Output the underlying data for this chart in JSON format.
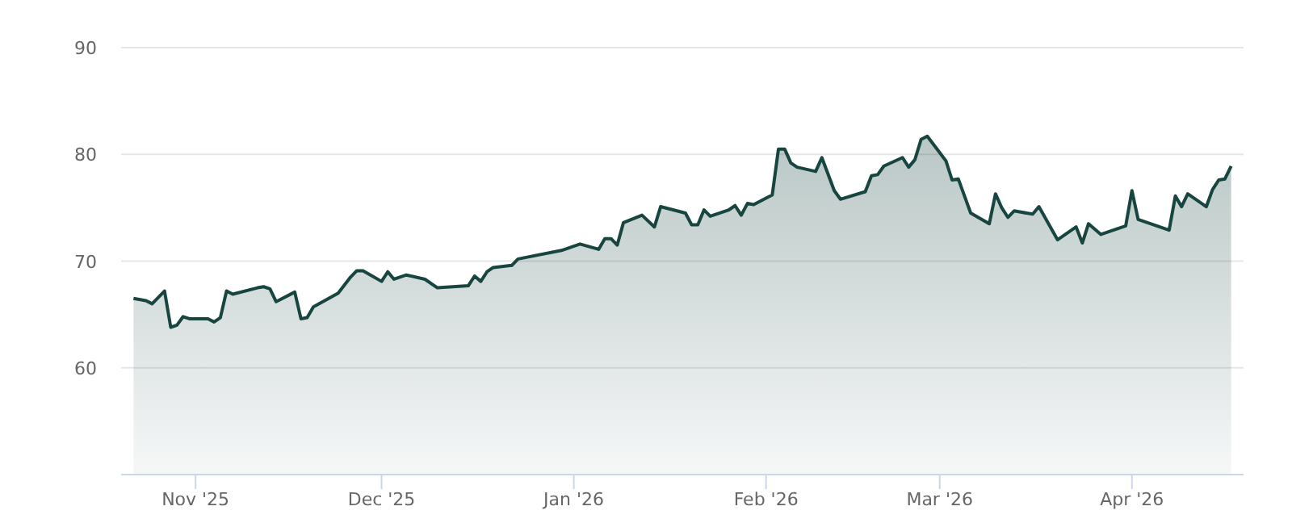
{
  "chart_data": {
    "type": "area",
    "ylim": [
      50,
      90
    ],
    "yticks": [
      60,
      70,
      80,
      90
    ],
    "grid": "y",
    "xlim": [
      "2025-10-20",
      "2026-04-19"
    ],
    "xticks": [
      {
        "value": "2025-11-01",
        "label": "Nov '25"
      },
      {
        "value": "2025-12-01",
        "label": "Dec '25"
      },
      {
        "value": "2026-01-01",
        "label": "Jan '26"
      },
      {
        "value": "2026-02-01",
        "label": "Feb '26"
      },
      {
        "value": "2026-03-01",
        "label": "Mar '26"
      },
      {
        "value": "2026-04-01",
        "label": "Apr '26"
      }
    ],
    "x": [
      "2025-10-22",
      "2025-10-24",
      "2025-10-25",
      "2025-10-27",
      "2025-10-28",
      "2025-10-29",
      "2025-10-30",
      "2025-10-31",
      "2025-11-03",
      "2025-11-04",
      "2025-11-05",
      "2025-11-06",
      "2025-11-07",
      "2025-11-11",
      "2025-11-12",
      "2025-11-13",
      "2025-11-14",
      "2025-11-17",
      "2025-11-18",
      "2025-11-19",
      "2025-11-20",
      "2025-11-24",
      "2025-11-26",
      "2025-11-27",
      "2025-11-28",
      "2025-12-01",
      "2025-12-02",
      "2025-12-03",
      "2025-12-05",
      "2025-12-08",
      "2025-12-10",
      "2025-12-15",
      "2025-12-16",
      "2025-12-17",
      "2025-12-18",
      "2025-12-19",
      "2025-12-22",
      "2025-12-23",
      "2025-12-30",
      "2026-01-02",
      "2026-01-05",
      "2026-01-06",
      "2026-01-07",
      "2026-01-08",
      "2026-01-09",
      "2026-01-12",
      "2026-01-14",
      "2026-01-15",
      "2026-01-19",
      "2026-01-20",
      "2026-01-21",
      "2026-01-22",
      "2026-01-23",
      "2026-01-26",
      "2026-01-27",
      "2026-01-28",
      "2026-01-29",
      "2026-01-30",
      "2026-02-02",
      "2026-02-03",
      "2026-02-04",
      "2026-02-05",
      "2026-02-06",
      "2026-02-09",
      "2026-02-10",
      "2026-02-12",
      "2026-02-13",
      "2026-02-17",
      "2026-02-18",
      "2026-02-19",
      "2026-02-20",
      "2026-02-23",
      "2026-02-24",
      "2026-02-25",
      "2026-02-26",
      "2026-02-27",
      "2026-03-02",
      "2026-03-03",
      "2026-03-04",
      "2026-03-06",
      "2026-03-09",
      "2026-03-10",
      "2026-03-11",
      "2026-03-12",
      "2026-03-13",
      "2026-03-16",
      "2026-03-17",
      "2026-03-20",
      "2026-03-23",
      "2026-03-24",
      "2026-03-25",
      "2026-03-27",
      "2026-03-31",
      "2026-04-01",
      "2026-04-02",
      "2026-04-07",
      "2026-04-08",
      "2026-04-09",
      "2026-04-10",
      "2026-04-13",
      "2026-04-14",
      "2026-04-15",
      "2026-04-16",
      "2026-04-17"
    ],
    "series": [
      {
        "color": "#174540",
        "values": [
          66.5,
          66.3,
          66.0,
          67.2,
          63.8,
          64.0,
          64.8,
          64.6,
          64.6,
          64.3,
          64.7,
          67.2,
          66.9,
          67.5,
          67.6,
          67.4,
          66.2,
          67.1,
          64.6,
          64.7,
          65.7,
          67.0,
          68.5,
          69.1,
          69.1,
          68.1,
          69.0,
          68.3,
          68.7,
          68.3,
          67.5,
          67.7,
          68.6,
          68.1,
          69.0,
          69.4,
          69.6,
          70.2,
          71.0,
          71.6,
          71.1,
          72.1,
          72.1,
          71.5,
          73.6,
          74.3,
          73.2,
          75.1,
          74.5,
          73.4,
          73.4,
          74.8,
          74.2,
          74.8,
          75.2,
          74.3,
          75.4,
          75.3,
          76.2,
          80.5,
          80.5,
          79.2,
          78.8,
          78.4,
          79.7,
          76.6,
          75.8,
          76.5,
          78.0,
          78.1,
          78.9,
          79.7,
          78.8,
          79.5,
          81.4,
          81.7,
          79.4,
          77.6,
          77.7,
          74.5,
          73.5,
          76.3,
          75.0,
          74.1,
          74.7,
          74.4,
          75.1,
          72.0,
          73.2,
          71.7,
          73.5,
          72.5,
          73.3,
          76.6,
          73.9,
          72.9,
          76.1,
          75.1,
          76.3,
          75.1,
          76.7,
          77.6,
          77.7,
          78.9
        ]
      }
    ]
  }
}
